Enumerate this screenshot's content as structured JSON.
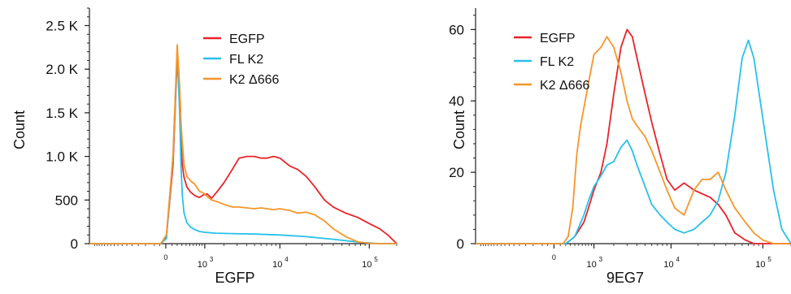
{
  "colors": {
    "EGFP": "#e8242a",
    "FL K2": "#29c0ea",
    "K2 Δ666": "#f5962a",
    "axis": "#222222"
  },
  "chart_data": [
    {
      "type": "line",
      "title": "",
      "xlabel": "EGFP",
      "ylabel": "Count",
      "x_scale": "biexponential",
      "xlim": [
        -3500,
        200000
      ],
      "ylim": [
        0,
        2700
      ],
      "x_tick_labels": [
        "0",
        "10",
        "10",
        "10"
      ],
      "x_tick_exponents": [
        "",
        "3",
        "4",
        "5"
      ],
      "x_tick_values": [
        0,
        1000,
        10000,
        100000
      ],
      "y_tick_labels": [
        "0",
        "500",
        "1.0 K",
        "1.5 K",
        "2.0 K",
        "2.5 K"
      ],
      "y_tick_values": [
        0,
        500,
        1000,
        1500,
        2000,
        2500
      ],
      "legend": "top-center",
      "series": [
        {
          "name": "EGFP",
          "x": [
            -3500,
            -80,
            10,
            120,
            200,
            250,
            280,
            310,
            350,
            420,
            520,
            650,
            800,
            950,
            1100,
            1300,
            1600,
            2000,
            2600,
            3200,
            4000,
            5000,
            6000,
            7000,
            8500,
            10000,
            13000,
            16000,
            20000,
            25000,
            32000,
            40000,
            55000,
            75000,
            100000,
            130000,
            160000,
            200000
          ],
          "y": [
            0,
            0,
            80,
            900,
            2150,
            1600,
            1150,
            900,
            760,
            650,
            590,
            550,
            530,
            560,
            570,
            520,
            600,
            700,
            850,
            980,
            1000,
            1000,
            980,
            980,
            1000,
            980,
            890,
            850,
            770,
            650,
            500,
            420,
            350,
            300,
            230,
            170,
            100,
            0
          ]
        },
        {
          "name": "FL K2",
          "x": [
            -3500,
            -80,
            10,
            120,
            200,
            250,
            280,
            310,
            350,
            420,
            520,
            650,
            800,
            1000,
            1500,
            2500,
            5000,
            10000,
            20000,
            40000,
            80000,
            130000,
            200000
          ],
          "y": [
            0,
            0,
            60,
            1000,
            2200,
            1500,
            900,
            550,
            350,
            240,
            190,
            160,
            140,
            130,
            120,
            115,
            110,
            100,
            80,
            50,
            15,
            0,
            0
          ]
        },
        {
          "name": "K2 Δ666",
          "x": [
            -3500,
            -80,
            10,
            120,
            200,
            250,
            280,
            310,
            350,
            420,
            520,
            650,
            800,
            950,
            1100,
            1300,
            1600,
            2000,
            2600,
            3200,
            4000,
            5000,
            6000,
            7000,
            8500,
            10000,
            13000,
            16000,
            20000,
            25000,
            32000,
            40000,
            55000,
            75000,
            100000,
            130000,
            200000
          ],
          "y": [
            0,
            0,
            100,
            1000,
            2280,
            1800,
            1400,
            1150,
            900,
            770,
            720,
            680,
            600,
            580,
            540,
            500,
            480,
            450,
            420,
            420,
            410,
            400,
            410,
            400,
            390,
            400,
            380,
            350,
            360,
            330,
            260,
            170,
            80,
            20,
            5,
            0,
            0
          ]
        }
      ]
    },
    {
      "type": "line",
      "title": "",
      "xlabel": "9EG7",
      "ylabel": "Count",
      "x_scale": "biexponential",
      "xlim": [
        -3500,
        200000
      ],
      "ylim": [
        0,
        66
      ],
      "x_tick_labels": [
        "0",
        "10",
        "10",
        "10"
      ],
      "x_tick_exponents": [
        "",
        "3",
        "4",
        "5"
      ],
      "x_tick_values": [
        0,
        1000,
        10000,
        100000
      ],
      "y_tick_labels": [
        "0",
        "20",
        "40",
        "60"
      ],
      "y_tick_values": [
        0,
        20,
        40,
        60
      ],
      "legend": "top-left",
      "series": [
        {
          "name": "EGFP",
          "x": [
            -3500,
            200,
            300,
            400,
            520,
            650,
            800,
            1000,
            1300,
            1600,
            2000,
            2500,
            3000,
            3500,
            4000,
            5000,
            6000,
            7500,
            9000,
            11000,
            14000,
            18000,
            22000,
            27000,
            33000,
            40000,
            50000,
            65000,
            80000,
            100000,
            130000,
            160000,
            200000
          ],
          "y": [
            0,
            0,
            1,
            2,
            4,
            6,
            10,
            15,
            20,
            28,
            42,
            55,
            60,
            58,
            52,
            42,
            34,
            25,
            18,
            15,
            17,
            15,
            14,
            13,
            11,
            8,
            3,
            1,
            0,
            0,
            0,
            0,
            0
          ]
        },
        {
          "name": "FL K2",
          "x": [
            -3500,
            200,
            300,
            400,
            520,
            650,
            800,
            1000,
            1300,
            1600,
            2000,
            2500,
            3000,
            3500,
            4000,
            5000,
            6000,
            7500,
            9000,
            11000,
            14000,
            18000,
            22000,
            27000,
            33000,
            40000,
            50000,
            60000,
            70000,
            80000,
            100000,
            130000,
            160000,
            200000
          ],
          "y": [
            0,
            0,
            1,
            2,
            5,
            8,
            12,
            16,
            19,
            22,
            23,
            27,
            29,
            26,
            22,
            16,
            11,
            8,
            6,
            4,
            3,
            4,
            6,
            8,
            12,
            20,
            36,
            52,
            57,
            52,
            35,
            15,
            4,
            0
          ]
        },
        {
          "name": "K2 Δ666",
          "x": [
            -3500,
            150,
            250,
            350,
            450,
            550,
            650,
            800,
            1000,
            1300,
            1600,
            2000,
            2500,
            3000,
            3500,
            4000,
            5000,
            6000,
            7500,
            9000,
            11000,
            14000,
            18000,
            22000,
            27000,
            33000,
            40000,
            50000,
            65000,
            80000,
            100000,
            130000,
            200000
          ],
          "y": [
            0,
            0,
            2,
            10,
            25,
            33,
            38,
            45,
            53,
            55,
            58,
            55,
            48,
            40,
            35,
            33,
            30,
            26,
            20,
            15,
            10,
            8,
            15,
            18,
            18,
            20,
            15,
            10,
            6,
            3,
            1,
            0,
            0
          ]
        }
      ]
    }
  ]
}
